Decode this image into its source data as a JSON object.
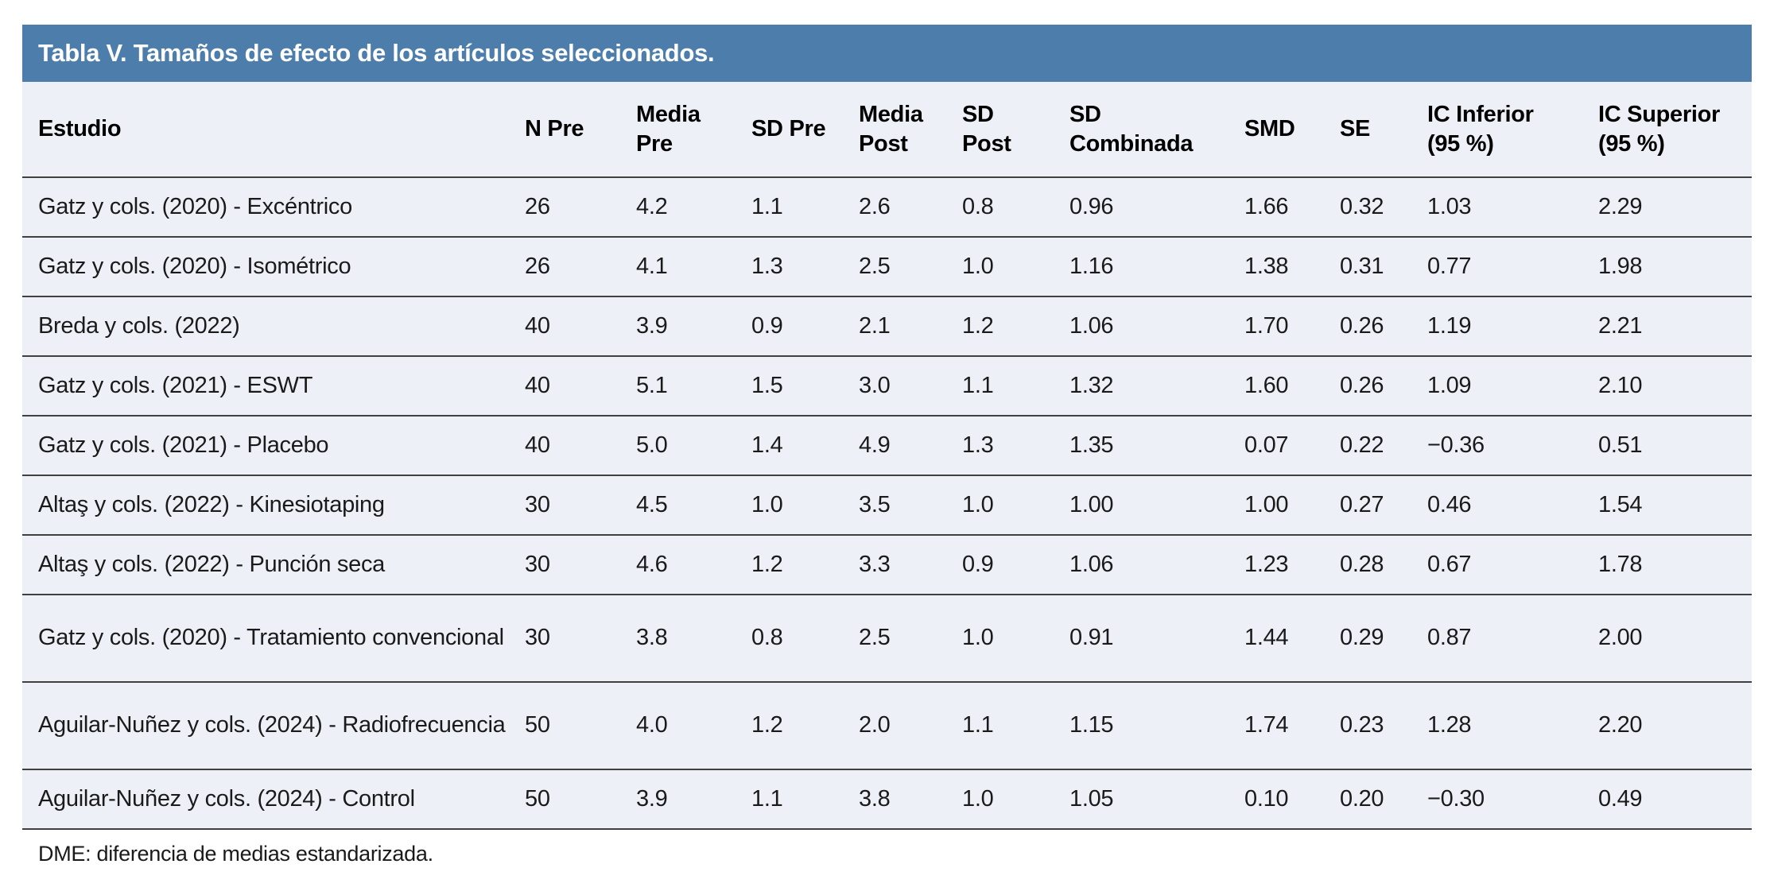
{
  "colors": {
    "title_bar_background": "#4d7dab",
    "title_text": "#ffffff",
    "row_background": "#edf1f7",
    "rule_line": "#404040",
    "body_text": "#1a1a1a"
  },
  "table": {
    "title": "Tabla V. Tamaños de efecto de los artículos seleccionados.",
    "columns": [
      "Estudio",
      "N Pre",
      "Media\nPre",
      "SD Pre",
      "Media\nPost",
      "SD\nPost",
      "SD\nCombinada",
      "SMD",
      "SE",
      "IC Inferior\n(95 %)",
      "IC Superior\n(95 %)"
    ],
    "rows": [
      [
        "Gatz y cols. (2020) - Excéntrico",
        "26",
        "4.2",
        "1.1",
        "2.6",
        "0.8",
        "0.96",
        "1.66",
        "0.32",
        "1.03",
        "2.29"
      ],
      [
        "Gatz y cols. (2020) - Isométrico",
        "26",
        "4.1",
        "1.3",
        "2.5",
        "1.0",
        "1.16",
        "1.38",
        "0.31",
        "0.77",
        "1.98"
      ],
      [
        "Breda y cols. (2022)",
        "40",
        "3.9",
        "0.9",
        "2.1",
        "1.2",
        "1.06",
        "1.70",
        "0.26",
        "1.19",
        "2.21"
      ],
      [
        "Gatz y cols. (2021) - ESWT",
        "40",
        "5.1",
        "1.5",
        "3.0",
        "1.1",
        "1.32",
        "1.60",
        "0.26",
        "1.09",
        "2.10"
      ],
      [
        "Gatz y cols. (2021) - Placebo",
        "40",
        "5.0",
        "1.4",
        "4.9",
        "1.3",
        "1.35",
        "0.07",
        "0.22",
        "−0.36",
        "0.51"
      ],
      [
        "Altaş y cols. (2022) - Kinesiotaping",
        "30",
        "4.5",
        "1.0",
        "3.5",
        "1.0",
        "1.00",
        "1.00",
        "0.27",
        "0.46",
        "1.54"
      ],
      [
        "Altaş y cols. (2022) - Punción seca",
        "30",
        "4.6",
        "1.2",
        "3.3",
        "0.9",
        "1.06",
        "1.23",
        "0.28",
        "0.67",
        "1.78"
      ],
      [
        "Gatz y cols. (2020) - Tratamiento convencional",
        "30",
        "3.8",
        "0.8",
        "2.5",
        "1.0",
        "0.91",
        "1.44",
        "0.29",
        "0.87",
        "2.00"
      ],
      [
        "Aguilar-Nuñez y cols. (2024) - Radiofrecuencia",
        "50",
        "4.0",
        "1.2",
        "2.0",
        "1.1",
        "1.15",
        "1.74",
        "0.23",
        "1.28",
        "2.20"
      ],
      [
        "Aguilar-Nuñez y cols. (2024) - Control",
        "50",
        "3.9",
        "1.1",
        "3.8",
        "1.0",
        "1.05",
        "0.10",
        "0.20",
        "−0.30",
        "0.49"
      ]
    ],
    "footnote": "DME: diferencia de medias estandarizada."
  }
}
